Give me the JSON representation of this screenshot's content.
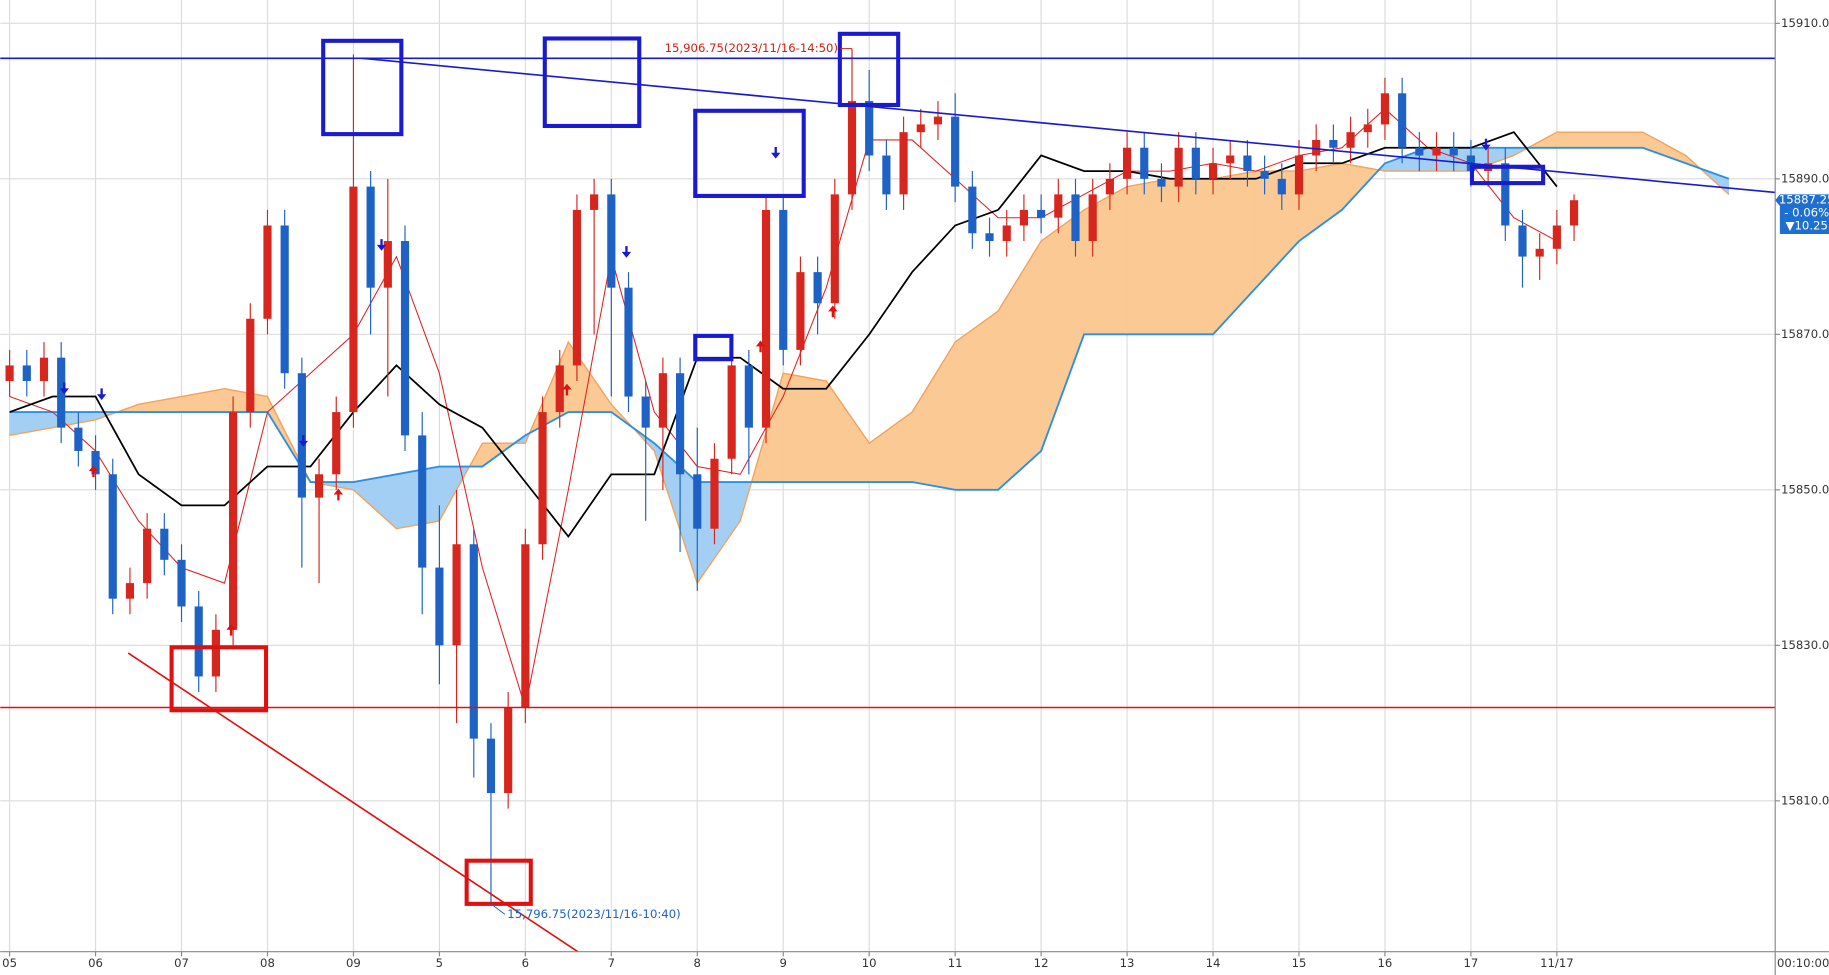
{
  "chart_data": {
    "type": "candlestick",
    "interval": "00:10:00",
    "xlim": [
      -0.11,
      20.54
    ],
    "ylim": [
      15790.6,
      15913
    ],
    "grid": true,
    "up_color": "#d7261e",
    "down_color": "#1d62c4",
    "xticks": [
      {
        "value": 0,
        "label": "05"
      },
      {
        "value": 1,
        "label": "06"
      },
      {
        "value": 2,
        "label": "07"
      },
      {
        "value": 3,
        "label": "08"
      },
      {
        "value": 4,
        "label": "09"
      },
      5,
      6,
      7,
      8,
      9,
      10,
      11,
      12,
      13,
      14,
      15,
      16,
      17,
      {
        "value": 18,
        "label": "11/17"
      }
    ],
    "yticks": [
      {
        "value": 15810,
        "label": "15810.00"
      },
      {
        "value": 15830,
        "label": "15830.00"
      },
      {
        "value": 15850,
        "label": "15850.00"
      },
      {
        "value": 15870,
        "label": "15870.00"
      },
      {
        "value": 15890,
        "label": "15890.00"
      },
      {
        "value": 15910,
        "label": "15910.00"
      }
    ],
    "x": [
      0,
      0.2,
      0.4,
      0.6,
      0.8,
      1,
      1.2,
      1.4,
      1.6,
      1.8,
      2,
      2.2,
      2.4,
      2.6,
      2.8,
      3,
      3.2,
      3.4,
      3.6,
      3.8,
      4,
      4.2,
      4.4,
      4.6,
      4.8,
      5,
      5.2,
      5.4,
      5.6,
      5.8,
      6,
      6.2,
      6.4,
      6.6,
      6.8,
      7,
      7.2,
      7.4,
      7.6,
      7.8,
      8,
      8.2,
      8.4,
      8.6,
      8.8,
      9,
      9.2,
      9.4,
      9.6,
      9.8,
      10,
      10.2,
      10.4,
      10.6,
      10.8,
      11,
      11.2,
      11.4,
      11.6,
      11.8,
      12,
      12.2,
      12.4,
      12.6,
      12.8,
      13,
      13.2,
      13.4,
      13.6,
      13.8,
      14,
      14.2,
      14.4,
      14.6,
      14.8,
      15,
      15.2,
      15.4,
      15.6,
      15.8,
      16,
      16.2,
      16.4,
      16.6,
      16.8,
      17,
      17.2,
      17.4,
      17.6,
      17.8,
      18,
      18.2
    ],
    "open": [
      15864,
      15866,
      15864,
      15867,
      15858,
      15855,
      15852,
      15836,
      15838,
      15845,
      15841,
      15835,
      15826,
      15832,
      15860,
      15872,
      15884,
      15865,
      15849,
      15852,
      15860,
      15889,
      15876,
      15882,
      15857,
      15840,
      15830,
      15843,
      15818,
      15811,
      15822,
      15843,
      15860,
      15866,
      15886,
      15888,
      15876,
      15862,
      15858,
      15865,
      15852,
      15845,
      15854,
      15866,
      15858,
      15886,
      15868,
      15878,
      15874,
      15888,
      15900,
      15893,
      15888,
      15896,
      15897,
      15898,
      15889,
      15883,
      15882,
      15884,
      15886,
      15885,
      15888,
      15882,
      15888,
      15890,
      15894,
      15890,
      15889,
      15894,
      15890,
      15892,
      15893,
      15891,
      15890,
      15888,
      15893,
      15895,
      15894,
      15896,
      15897,
      15901,
      15894,
      15893,
      15894,
      15893,
      15891,
      15892,
      15884,
      15880,
      15881,
      15884
    ],
    "high": [
      15868,
      15868,
      15869,
      15869,
      15860,
      15857,
      15854,
      15840,
      15847,
      15847,
      15843,
      15837,
      15834,
      15862,
      15874,
      15886,
      15886,
      15867,
      15854,
      15862,
      15906,
      15891,
      15890,
      15884,
      15860,
      15848,
      15850,
      15845,
      15820,
      15824,
      15845,
      15862,
      15868,
      15888,
      15890,
      15890,
      15878,
      15864,
      15867,
      15867,
      15858,
      15856,
      15868,
      15868,
      15888,
      15888,
      15880,
      15880,
      15890,
      15906.75,
      15904,
      15895,
      15898,
      15899,
      15900,
      15901,
      15891,
      15885,
      15886,
      15888,
      15888,
      15890,
      15890,
      15890,
      15892,
      15896,
      15896,
      15892,
      15896,
      15896,
      15894,
      15895,
      15895,
      15893,
      15892,
      15895,
      15897,
      15897,
      15898,
      15899,
      15903,
      15903,
      15896,
      15896,
      15896,
      15895,
      15894,
      15894,
      15886,
      15883,
      15886,
      15888
    ],
    "low": [
      15862,
      15862,
      15862,
      15856,
      15853,
      15850,
      15834,
      15834,
      15836,
      15839,
      15833,
      15824,
      15824,
      15830,
      15858,
      15870,
      15863,
      15840,
      15838,
      15850,
      15858,
      15870,
      15862,
      15855,
      15834,
      15825,
      15820,
      15813,
      15796.75,
      15809,
      15820,
      15841,
      15858,
      15864,
      15870,
      15862,
      15860,
      15846,
      15850,
      15842,
      15837,
      15843,
      15852,
      15852,
      15856,
      15866,
      15866,
      15870,
      15872,
      15886,
      15891,
      15886,
      15886,
      15894,
      15895,
      15887,
      15881,
      15880,
      15880,
      15882,
      15883,
      15883,
      15880,
      15880,
      15886,
      15888,
      15888,
      15887,
      15887,
      15888,
      15888,
      15890,
      15889,
      15888,
      15886,
      15886,
      15891,
      15892,
      15892,
      15894,
      15895,
      15892,
      15891,
      15891,
      15891,
      15889,
      15889,
      15882,
      15876,
      15877,
      15879,
      15882
    ],
    "close": [
      15866,
      15864,
      15867,
      15858,
      15855,
      15852,
      15836,
      15838,
      15845,
      15841,
      15835,
      15826,
      15832,
      15860,
      15872,
      15884,
      15865,
      15849,
      15852,
      15860,
      15889,
      15876,
      15882,
      15857,
      15840,
      15830,
      15843,
      15818,
      15811,
      15822,
      15843,
      15860,
      15866,
      15886,
      15888,
      15876,
      15862,
      15858,
      15865,
      15852,
      15845,
      15854,
      15866,
      15858,
      15886,
      15868,
      15878,
      15874,
      15888,
      15900,
      15893,
      15888,
      15896,
      15897,
      15898,
      15889,
      15883,
      15882,
      15884,
      15886,
      15885,
      15888,
      15882,
      15888,
      15890,
      15894,
      15890,
      15889,
      15894,
      15890,
      15892,
      15893,
      15891,
      15890,
      15888,
      15893,
      15895,
      15894,
      15896,
      15897,
      15901,
      15894,
      15893,
      15894,
      15893,
      15891,
      15892,
      15884,
      15880,
      15881,
      15884,
      15887.25
    ],
    "ichimoku": {
      "x": [
        0,
        0.5,
        1,
        1.5,
        2,
        2.5,
        3,
        3.5,
        4,
        4.5,
        5,
        5.5,
        6,
        6.5,
        7,
        7.5,
        8,
        8.5,
        9,
        9.5,
        10,
        10.5,
        11,
        11.5,
        12,
        12.5,
        13,
        13.5,
        14,
        14.5,
        15,
        15.5,
        16,
        16.5,
        17,
        17.5,
        18,
        18.5,
        19,
        19.5,
        20
      ],
      "span_a": [
        15857,
        15858,
        15859,
        15861,
        15862,
        15863,
        15862,
        15851,
        15850,
        15845,
        15846,
        15856,
        15856,
        15869,
        15861,
        15855,
        15838,
        15846,
        15865,
        15864,
        15856,
        15860,
        15869,
        15873,
        15882,
        15886,
        15889,
        15890,
        15890,
        15891,
        15891,
        15892,
        15891,
        15891,
        15891,
        15893,
        15896,
        15896,
        15896,
        15893,
        15888
      ],
      "span_b": [
        15860,
        15860,
        15860,
        15860,
        15860,
        15860,
        15860,
        15851,
        15851,
        15852,
        15853,
        15853,
        15857,
        15860,
        15860,
        15856,
        15851,
        15851,
        15851,
        15851,
        15851,
        15851,
        15850,
        15850,
        15855,
        15870,
        15870,
        15870,
        15870,
        15876,
        15882,
        15886,
        15892,
        15894,
        15894,
        15894,
        15894,
        15894,
        15894,
        15892,
        15890
      ],
      "kijun": [
        15860,
        15862,
        15862,
        15852,
        15848,
        15848,
        15853,
        15853,
        15860,
        15866,
        15861,
        15858,
        15851,
        15844,
        15852,
        15852,
        15867,
        15867,
        15863,
        15863,
        15870,
        15878,
        15884,
        15886,
        15893,
        15891,
        15891,
        15890,
        15890,
        15890,
        15892,
        15892,
        15894,
        15894,
        15894,
        15896,
        15889,
        null,
        null,
        null,
        null
      ],
      "tenkan": [
        15862,
        15860,
        15855,
        15846,
        15840,
        15838,
        15860,
        15865,
        15870,
        15880,
        15865,
        15840,
        15822,
        15850,
        15880,
        15860,
        15853,
        15852,
        15862,
        15876,
        15895,
        15895,
        15890,
        15885,
        15885,
        15888,
        15891,
        15891,
        15892,
        15891,
        15893,
        15894,
        15899,
        15894,
        15892,
        15885,
        15882,
        null,
        null,
        null,
        null
      ],
      "span_a_color": "#f2a35a",
      "span_b_color": "#2e8fe0",
      "kijun_color": "#000000",
      "tenkan_color": "#e02020",
      "bull_fill": "#fbc994",
      "bear_fill": "#a3cff5"
    },
    "hlines": [
      {
        "value": 15905.5,
        "color": "#1a1ad0"
      },
      {
        "value": 15822,
        "color": "#e01010"
      }
    ],
    "trendlines": [
      {
        "x": [
          4.1,
          20.54
        ],
        "y": [
          15905.5,
          15888.25
        ],
        "color": "#1a1ad0"
      },
      {
        "x": [
          1.38,
          6.61
        ],
        "y": [
          15829,
          15790.6
        ],
        "color": "#e01010"
      }
    ],
    "annotations": [
      {
        "text": "15,906.75(2023/11/16-14:50)",
        "x": 9.8,
        "y": 15906.75,
        "color": "#d02010"
      },
      {
        "text": "15,796.75(2023/11/16-10:40)",
        "x": 5.6,
        "y": 15796.75,
        "color": "#1d62c4"
      }
    ],
    "last_price": {
      "value": 15887.25,
      "change": "- 0.06%",
      "delta": "▼10.25",
      "color": "#1e6fd0"
    }
  }
}
